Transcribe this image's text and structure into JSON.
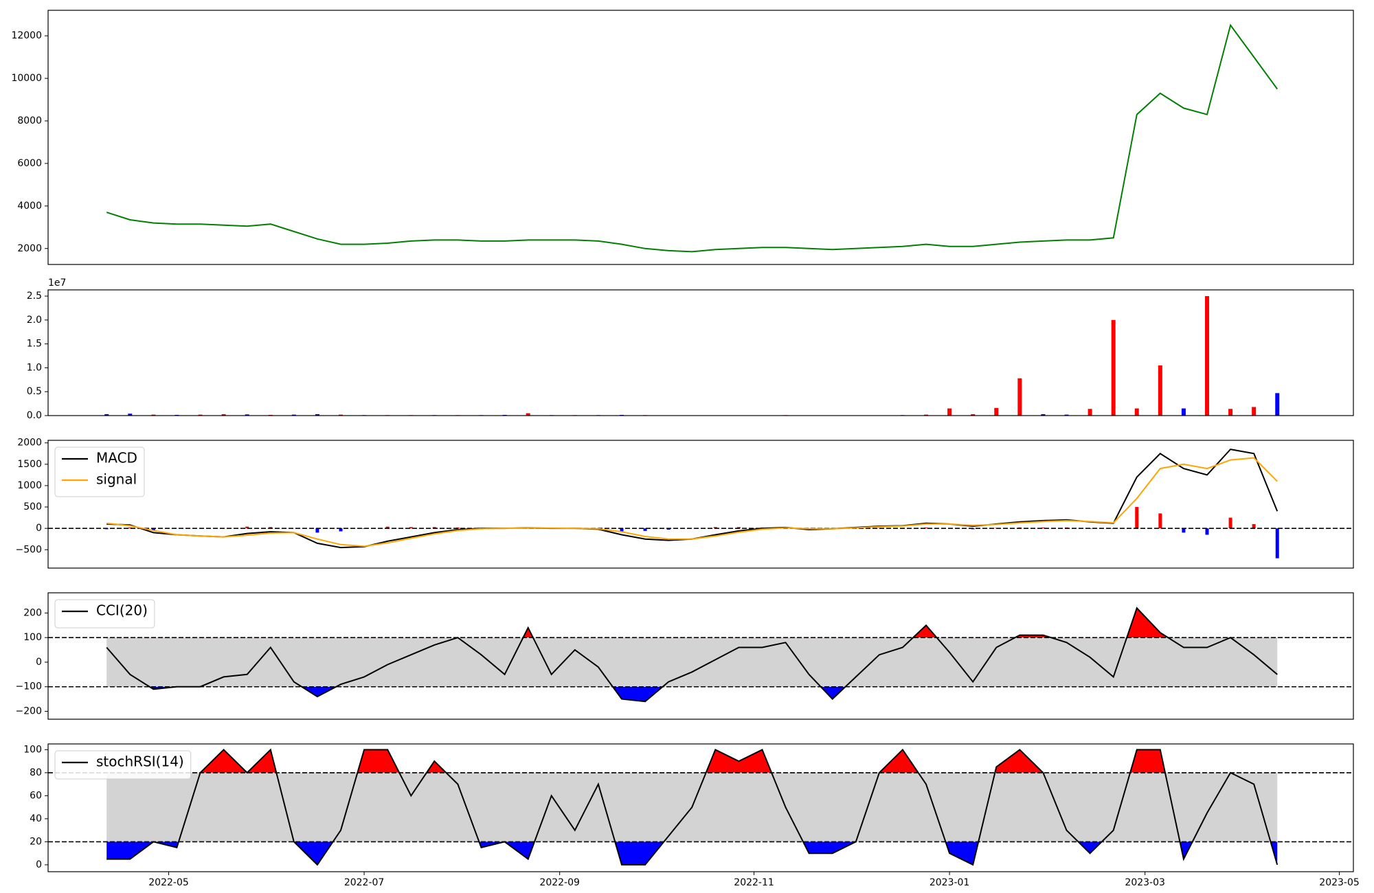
{
  "chart_data": [
    {
      "type": "line",
      "color": "#008000",
      "x": [
        2022.28,
        2022.3,
        2022.32,
        2022.34,
        2022.36,
        2022.38,
        2022.4,
        2022.42,
        2022.44,
        2022.46,
        2022.48,
        2022.5,
        2022.52,
        2022.54,
        2022.56,
        2022.58,
        2022.6,
        2022.62,
        2022.64,
        2022.66,
        2022.68,
        2022.7,
        2022.72,
        2022.74,
        2022.76,
        2022.78,
        2022.8,
        2022.82,
        2022.84,
        2022.86,
        2022.88,
        2022.9,
        2022.92,
        2022.94,
        2022.96,
        2022.98,
        2023,
        2023.02,
        2023.04,
        2023.06,
        2023.08,
        2023.1,
        2023.12,
        2023.14,
        2023.16,
        2023.18,
        2023.2,
        2023.22,
        2023.24,
        2023.26,
        2023.28
      ],
      "values": [
        3700,
        3350,
        3200,
        3150,
        3150,
        3100,
        3050,
        3150,
        2800,
        2450,
        2200,
        2200,
        2250,
        2350,
        2400,
        2400,
        2350,
        2350,
        2400,
        2400,
        2400,
        2350,
        2200,
        2000,
        1900,
        1850,
        1950,
        2000,
        2050,
        2050,
        2000,
        1950,
        2000,
        2050,
        2100,
        2200,
        2100,
        2100,
        2200,
        2300,
        2350,
        2400,
        2400,
        2500,
        8300,
        9300,
        8600,
        8300,
        12500,
        11000,
        9500
      ],
      "xlim": [
        2022.23,
        2023.345
      ],
      "ylim": [
        1250,
        13200
      ],
      "yticks": [
        2000,
        4000,
        6000,
        8000,
        10000,
        12000
      ]
    },
    {
      "type": "bar",
      "offset_label": "1e7",
      "x": [
        2022.28,
        2022.3,
        2022.32,
        2022.34,
        2022.36,
        2022.38,
        2022.4,
        2022.42,
        2022.44,
        2022.46,
        2022.48,
        2022.5,
        2022.52,
        2022.54,
        2022.56,
        2022.58,
        2022.6,
        2022.62,
        2022.64,
        2022.66,
        2022.68,
        2022.7,
        2022.72,
        2022.74,
        2022.76,
        2022.78,
        2022.8,
        2022.82,
        2022.84,
        2022.86,
        2022.88,
        2022.9,
        2022.92,
        2022.94,
        2022.96,
        2022.98,
        2023,
        2023.02,
        2023.04,
        2023.06,
        2023.08,
        2023.1,
        2023.12,
        2023.14,
        2023.16,
        2023.18,
        2023.2,
        2023.22,
        2023.24,
        2023.26,
        2023.28
      ],
      "values": [
        300000,
        400000,
        200000,
        150000,
        200000,
        300000,
        250000,
        150000,
        200000,
        300000,
        200000,
        100000,
        100000,
        100000,
        100000,
        100000,
        100000,
        150000,
        500000,
        100000,
        100000,
        100000,
        150000,
        100000,
        50000,
        50000,
        50000,
        50000,
        50000,
        100000,
        50000,
        50000,
        50000,
        50000,
        100000,
        200000,
        1500000,
        300000,
        1600000,
        7800000,
        300000,
        200000,
        1400000,
        20000000,
        1500000,
        10500000,
        1500000,
        25000000,
        1400000,
        1800000,
        4700000
      ],
      "colors": [
        "blue",
        "blue",
        "red",
        "blue",
        "red",
        "red",
        "blue",
        "red",
        "blue",
        "blue",
        "red",
        "blue",
        "red",
        "red",
        "blue",
        "red",
        "blue",
        "blue",
        "red",
        "blue",
        "red",
        "blue",
        "blue",
        "red",
        "blue",
        "red",
        "blue",
        "red",
        "blue",
        "red",
        "blue",
        "red",
        "blue",
        "red",
        "blue",
        "red",
        "red",
        "red",
        "red",
        "red",
        "blue",
        "blue",
        "red",
        "red",
        "red",
        "red",
        "blue",
        "red",
        "red",
        "red",
        "blue"
      ],
      "xlim": [
        2022.23,
        2023.345
      ],
      "ylim": [
        0,
        26300000
      ],
      "yticks": [
        {
          "value": 0,
          "label": "0.0"
        },
        {
          "value": 5000000,
          "label": "0.5"
        },
        {
          "value": 10000000,
          "label": "1.0"
        },
        {
          "value": 15000000,
          "label": "1.5"
        },
        {
          "value": 20000000,
          "label": "2.0"
        },
        {
          "value": 25000000,
          "label": "2.5"
        }
      ]
    },
    {
      "type": "macd",
      "legend": "upper left",
      "hlines": [
        0
      ],
      "x": [
        2022.28,
        2022.3,
        2022.32,
        2022.34,
        2022.36,
        2022.38,
        2022.4,
        2022.42,
        2022.44,
        2022.46,
        2022.48,
        2022.5,
        2022.52,
        2022.54,
        2022.56,
        2022.58,
        2022.6,
        2022.62,
        2022.64,
        2022.66,
        2022.68,
        2022.7,
        2022.72,
        2022.74,
        2022.76,
        2022.78,
        2022.8,
        2022.82,
        2022.84,
        2022.86,
        2022.88,
        2022.9,
        2022.92,
        2022.94,
        2022.96,
        2022.98,
        2023,
        2023.02,
        2023.04,
        2023.06,
        2023.08,
        2023.1,
        2023.12,
        2023.14,
        2023.16,
        2023.18,
        2023.2,
        2023.22,
        2023.24,
        2023.26,
        2023.28
      ],
      "series": [
        {
          "name": "MACD",
          "color": "black",
          "values": [
            100,
            80,
            -100,
            -150,
            -180,
            -200,
            -120,
            -80,
            -100,
            -350,
            -450,
            -430,
            -300,
            -200,
            -100,
            -30,
            0,
            0,
            10,
            0,
            0,
            -20,
            -150,
            -250,
            -280,
            -250,
            -150,
            -60,
            0,
            20,
            -30,
            -10,
            20,
            50,
            60,
            120,
            100,
            50,
            100,
            150,
            180,
            200,
            150,
            120,
            1200,
            1750,
            1400,
            1250,
            1850,
            1750,
            400
          ]
        },
        {
          "name": "signal",
          "color": "orange",
          "values": [
            120,
            60,
            -50,
            -150,
            -180,
            -200,
            -160,
            -110,
            -100,
            -250,
            -380,
            -420,
            -340,
            -230,
            -130,
            -50,
            -10,
            0,
            5,
            5,
            0,
            -10,
            -80,
            -190,
            -250,
            -250,
            -180,
            -90,
            -20,
            10,
            -10,
            -10,
            10,
            40,
            55,
            100,
            100,
            70,
            90,
            130,
            160,
            180,
            160,
            130,
            700,
            1400,
            1500,
            1400,
            1600,
            1650,
            1100
          ]
        }
      ],
      "histogram": {
        "up_color": "red",
        "down_color": "blue",
        "values": [
          -20,
          20,
          -50,
          0,
          0,
          0,
          40,
          30,
          0,
          -100,
          -70,
          -10,
          40,
          30,
          30,
          20,
          10,
          0,
          5,
          -5,
          0,
          -10,
          -70,
          -60,
          -30,
          0,
          30,
          30,
          20,
          10,
          -20,
          0,
          10,
          10,
          5,
          20,
          0,
          -20,
          10,
          20,
          20,
          20,
          -10,
          -10,
          500,
          350,
          -100,
          -150,
          250,
          100,
          -700
        ]
      },
      "xlim": [
        2022.23,
        2023.345
      ],
      "ylim": [
        -930,
        2060
      ],
      "yticks": [
        {
          "value": -500,
          "label": "−500"
        },
        0,
        500,
        1000,
        1500,
        2000
      ]
    },
    {
      "type": "oscillator",
      "legend": "upper left",
      "hlines": [
        100,
        -100
      ],
      "band_color": "lightgray",
      "above_color": "red",
      "below_color": "blue",
      "x": [
        2022.28,
        2022.3,
        2022.32,
        2022.34,
        2022.36,
        2022.38,
        2022.4,
        2022.42,
        2022.44,
        2022.46,
        2022.48,
        2022.5,
        2022.52,
        2022.54,
        2022.56,
        2022.58,
        2022.6,
        2022.62,
        2022.64,
        2022.66,
        2022.68,
        2022.7,
        2022.72,
        2022.74,
        2022.76,
        2022.78,
        2022.8,
        2022.82,
        2022.84,
        2022.86,
        2022.88,
        2022.9,
        2022.92,
        2022.94,
        2022.96,
        2022.98,
        2023,
        2023.02,
        2023.04,
        2023.06,
        2023.08,
        2023.1,
        2023.12,
        2023.14,
        2023.16,
        2023.18,
        2023.2,
        2023.22,
        2023.24,
        2023.26,
        2023.28
      ],
      "series": [
        {
          "name": "CCI(20)",
          "color": "black",
          "values": [
            60,
            -50,
            -110,
            -100,
            -100,
            -60,
            -50,
            60,
            -80,
            -140,
            -90,
            -60,
            -10,
            30,
            70,
            100,
            30,
            -50,
            140,
            -50,
            50,
            -20,
            -150,
            -160,
            -80,
            -40,
            10,
            60,
            60,
            80,
            -50,
            -150,
            -60,
            30,
            60,
            150,
            40,
            -80,
            60,
            110,
            110,
            80,
            20,
            -60,
            220,
            120,
            60,
            60,
            100,
            30,
            -50
          ]
        }
      ],
      "xlim": [
        2022.23,
        2023.345
      ],
      "ylim": [
        -232,
        282
      ],
      "yticks": [
        {
          "value": -200,
          "label": "−200"
        },
        {
          "value": -100,
          "label": "−100"
        },
        0,
        100,
        200
      ]
    },
    {
      "type": "oscillator",
      "legend": "upper left",
      "hlines": [
        80,
        20
      ],
      "band_color": "lightgray",
      "above_color": "red",
      "below_color": "blue",
      "x": [
        2022.28,
        2022.3,
        2022.32,
        2022.34,
        2022.36,
        2022.38,
        2022.4,
        2022.42,
        2022.44,
        2022.46,
        2022.48,
        2022.5,
        2022.52,
        2022.54,
        2022.56,
        2022.58,
        2022.6,
        2022.62,
        2022.64,
        2022.66,
        2022.68,
        2022.7,
        2022.72,
        2022.74,
        2022.76,
        2022.78,
        2022.8,
        2022.82,
        2022.84,
        2022.86,
        2022.88,
        2022.9,
        2022.92,
        2022.94,
        2022.96,
        2022.98,
        2023,
        2023.02,
        2023.04,
        2023.06,
        2023.08,
        2023.1,
        2023.12,
        2023.14,
        2023.16,
        2023.18,
        2023.2,
        2023.22,
        2023.24,
        2023.26,
        2023.28
      ],
      "series": [
        {
          "name": "stochRSI(14)",
          "color": "black",
          "values": [
            5,
            5,
            20,
            15,
            80,
            100,
            80,
            100,
            20,
            0,
            30,
            100,
            100,
            60,
            90,
            70,
            15,
            20,
            5,
            60,
            30,
            70,
            0,
            0,
            25,
            50,
            100,
            90,
            100,
            50,
            10,
            10,
            20,
            80,
            100,
            70,
            10,
            0,
            85,
            100,
            80,
            30,
            10,
            30,
            100,
            100,
            5,
            45,
            80,
            70,
            0
          ]
        }
      ],
      "xlim": [
        2022.23,
        2023.345
      ],
      "ylim": [
        -6,
        105
      ],
      "yticks": [
        0,
        20,
        40,
        60,
        80,
        100
      ],
      "xticks": [
        {
          "value": 2022.333,
          "label": "2022-05"
        },
        {
          "value": 2022.5,
          "label": "2022-07"
        },
        {
          "value": 2022.667,
          "label": "2022-09"
        },
        {
          "value": 2022.833,
          "label": "2022-11"
        },
        {
          "value": 2023,
          "label": "2023-01"
        },
        {
          "value": 2023.167,
          "label": "2023-03"
        },
        {
          "value": 2023.333,
          "label": "2023-05"
        }
      ]
    }
  ]
}
